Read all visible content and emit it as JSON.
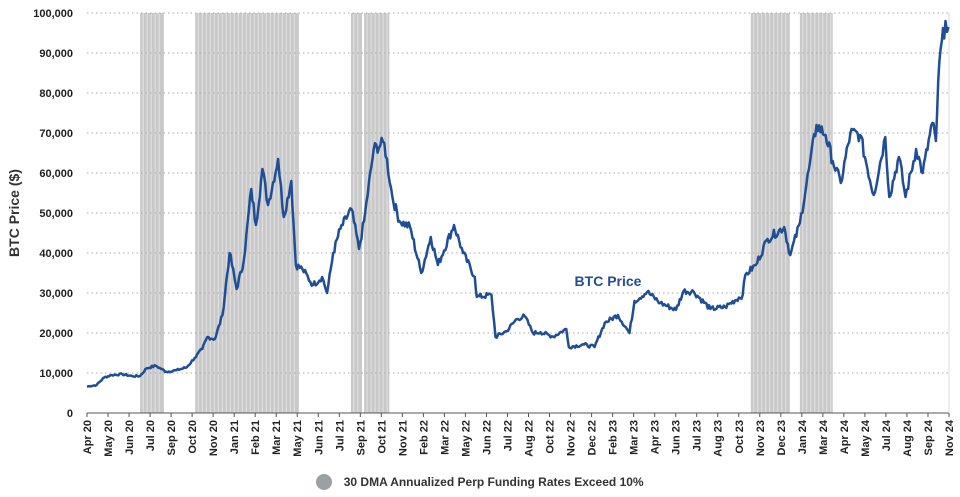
{
  "colors": {
    "line": "#1f4e96",
    "shade": "#c9c9c9",
    "grid": "#aaaaaa",
    "axis": "#555555"
  },
  "chart_data": {
    "type": "line",
    "ylabel": "BTC Price ($)",
    "ylim": [
      0,
      100000
    ],
    "yticks": [
      0,
      10000,
      20000,
      30000,
      40000,
      50000,
      60000,
      70000,
      80000,
      90000,
      100000
    ],
    "ytick_labels": [
      "0",
      "10,000",
      "20,000",
      "30,000",
      "40,000",
      "50,000",
      "60,000",
      "70,000",
      "80,000",
      "90,000",
      "100,000"
    ],
    "xlim": [
      "2020-04-01",
      "2024-12-01"
    ],
    "xtick_labels": [
      "Apr 20",
      "May 20",
      "Jun 20",
      "Jul 20",
      "Sep 20",
      "Oct 20",
      "Nov 20",
      "Jan 21",
      "Feb 21",
      "Mar 21",
      "May 21",
      "Jun 21",
      "Jul 21",
      "Sep 21",
      "Oct 21",
      "Nov 21",
      "Feb 22",
      "Mar 22",
      "May 22",
      "Jun 22",
      "Jul 22",
      "Aug 22",
      "Oct 22",
      "Nov 22",
      "Dec 22",
      "Feb 23",
      "Mar 23",
      "Apr 23",
      "Jun 23",
      "Jul 23",
      "Aug 23",
      "Oct 23",
      "Nov 23",
      "Dec 23",
      "Jan 24",
      "Mar 24",
      "Apr 24",
      "May 24",
      "Jul 24",
      "Aug 24",
      "Sep 24",
      "Nov 24"
    ],
    "grid": "horizontal dotted",
    "legend_position": "bottom",
    "series": [
      {
        "name": "BTC Price",
        "color": "#1f4e96",
        "points": [
          [
            "2020-04-01",
            6600
          ],
          [
            "2020-04-20",
            7000
          ],
          [
            "2020-05-05",
            8900
          ],
          [
            "2020-05-20",
            9500
          ],
          [
            "2020-06-10",
            9700
          ],
          [
            "2020-06-30",
            9200
          ],
          [
            "2020-07-15",
            9250
          ],
          [
            "2020-07-28",
            11200
          ],
          [
            "2020-08-15",
            11800
          ],
          [
            "2020-09-05",
            10300
          ],
          [
            "2020-09-25",
            10700
          ],
          [
            "2020-10-15",
            11400
          ],
          [
            "2020-10-31",
            13800
          ],
          [
            "2020-11-15",
            16000
          ],
          [
            "2020-11-25",
            19000
          ],
          [
            "2020-12-10",
            18500
          ],
          [
            "2020-12-25",
            24500
          ],
          [
            "2021-01-08",
            40000
          ],
          [
            "2021-01-22",
            31000
          ],
          [
            "2021-02-05",
            38000
          ],
          [
            "2021-02-20",
            56000
          ],
          [
            "2021-03-01",
            47000
          ],
          [
            "2021-03-14",
            61000
          ],
          [
            "2021-03-25",
            52000
          ],
          [
            "2021-04-14",
            63500
          ],
          [
            "2021-04-25",
            49000
          ],
          [
            "2021-05-10",
            58000
          ],
          [
            "2021-05-19",
            37000
          ],
          [
            "2021-06-01",
            36000
          ],
          [
            "2021-06-22",
            32000
          ],
          [
            "2021-07-10",
            34000
          ],
          [
            "2021-07-20",
            30000
          ],
          [
            "2021-08-01",
            40000
          ],
          [
            "2021-08-15",
            46000
          ],
          [
            "2021-09-06",
            51000
          ],
          [
            "2021-09-21",
            41000
          ],
          [
            "2021-10-01",
            48000
          ],
          [
            "2021-10-20",
            66000
          ],
          [
            "2021-11-10",
            67500
          ],
          [
            "2021-11-26",
            54000
          ],
          [
            "2021-12-10",
            48000
          ],
          [
            "2021-12-31",
            46500
          ],
          [
            "2022-01-22",
            35000
          ],
          [
            "2022-02-10",
            44000
          ],
          [
            "2022-02-24",
            37000
          ],
          [
            "2022-03-28",
            47000
          ],
          [
            "2022-04-15",
            40000
          ],
          [
            "2022-05-08",
            34000
          ],
          [
            "2022-05-12",
            29000
          ],
          [
            "2022-06-10",
            29500
          ],
          [
            "2022-06-18",
            19000
          ],
          [
            "2022-07-10",
            20500
          ],
          [
            "2022-07-30",
            23500
          ],
          [
            "2022-08-15",
            24200
          ],
          [
            "2022-08-31",
            20000
          ],
          [
            "2022-09-15",
            20200
          ],
          [
            "2022-10-10",
            19100
          ],
          [
            "2022-11-05",
            21000
          ],
          [
            "2022-11-10",
            16500
          ],
          [
            "2022-12-10",
            17100
          ],
          [
            "2022-12-31",
            16500
          ],
          [
            "2023-01-20",
            22500
          ],
          [
            "2023-02-15",
            24500
          ],
          [
            "2023-03-10",
            20000
          ],
          [
            "2023-03-20",
            28000
          ],
          [
            "2023-04-14",
            30300
          ],
          [
            "2023-05-10",
            27500
          ],
          [
            "2023-06-10",
            25800
          ],
          [
            "2023-06-25",
            30500
          ],
          [
            "2023-07-15",
            30300
          ],
          [
            "2023-08-17",
            26000
          ],
          [
            "2023-09-15",
            26500
          ],
          [
            "2023-10-20",
            29500
          ],
          [
            "2023-10-25",
            34500
          ],
          [
            "2023-11-15",
            37000
          ],
          [
            "2023-12-08",
            43500
          ],
          [
            "2024-01-10",
            46500
          ],
          [
            "2024-01-22",
            39500
          ],
          [
            "2024-02-10",
            47500
          ],
          [
            "2024-02-28",
            61000
          ],
          [
            "2024-03-14",
            72000
          ],
          [
            "2024-04-01",
            69500
          ],
          [
            "2024-04-15",
            63000
          ],
          [
            "2024-05-01",
            57500
          ],
          [
            "2024-05-20",
            70000
          ],
          [
            "2024-06-08",
            69500
          ],
          [
            "2024-07-05",
            54500
          ],
          [
            "2024-07-28",
            69000
          ],
          [
            "2024-08-05",
            54000
          ],
          [
            "2024-08-24",
            64000
          ],
          [
            "2024-09-06",
            54000
          ],
          [
            "2024-09-27",
            66000
          ],
          [
            "2024-10-10",
            60000
          ],
          [
            "2024-10-29",
            72500
          ],
          [
            "2024-11-05",
            68000
          ],
          [
            "2024-11-12",
            88000
          ],
          [
            "2024-11-24",
            98000
          ],
          [
            "2024-11-30",
            96500
          ]
        ]
      }
    ],
    "shaded_periods": [
      [
        "2020-07-15",
        "2020-08-31"
      ],
      [
        "2020-11-01",
        "2021-05-25"
      ],
      [
        "2021-09-05",
        "2021-09-27"
      ],
      [
        "2021-10-01",
        "2021-11-20"
      ],
      [
        "2023-11-05",
        "2024-01-21"
      ],
      [
        "2024-02-10",
        "2024-04-15"
      ]
    ],
    "legend": [
      {
        "label": "30 DMA Annualized Perp Funding Rates Exceed 10%",
        "color": "#9aa0a4"
      }
    ]
  }
}
